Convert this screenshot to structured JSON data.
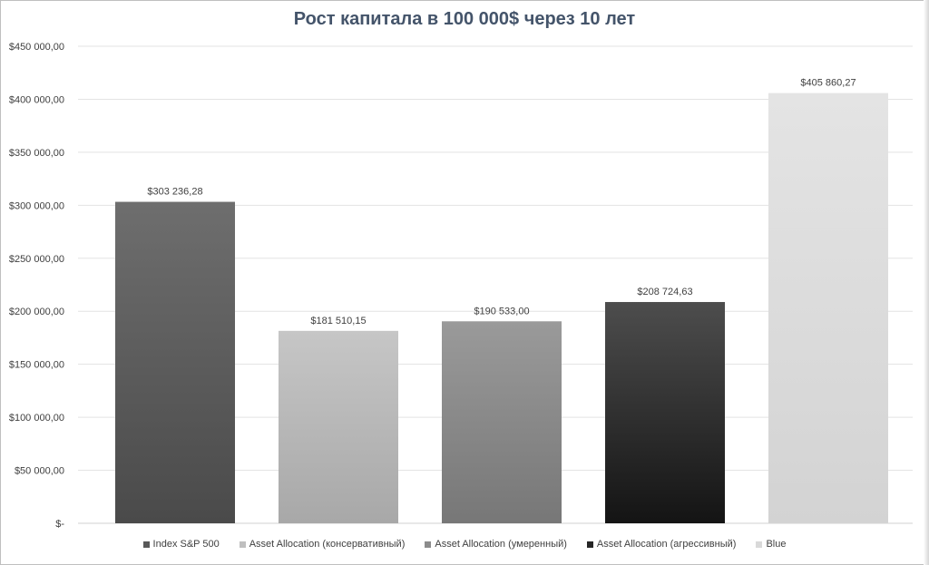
{
  "chart_data": {
    "type": "bar",
    "title": "Рост капитала в 100 000$ через 10 лет",
    "categories": [
      "Index S&P 500",
      "Asset Allocation (консервативный)",
      "Asset Allocation (умеренный)",
      "Asset Allocation (агрессивный)",
      "Blue"
    ],
    "values": [
      303236.28,
      181510.15,
      190533.0,
      208724.63,
      405860.27
    ],
    "data_labels": [
      "$303 236,28",
      "$181 510,15",
      "$190 533,00",
      "$208 724,63",
      "$405 860,27"
    ],
    "ylim": [
      0,
      450000
    ],
    "y_ticks": [
      {
        "value": 0,
        "label": "$-"
      },
      {
        "value": 50000,
        "label": "$50 000,00"
      },
      {
        "value": 100000,
        "label": "$100 000,00"
      },
      {
        "value": 150000,
        "label": "$150 000,00"
      },
      {
        "value": 200000,
        "label": "$200 000,00"
      },
      {
        "value": 250000,
        "label": "$250 000,00"
      },
      {
        "value": 300000,
        "label": "$300 000,00"
      },
      {
        "value": 350000,
        "label": "$350 000,00"
      },
      {
        "value": 400000,
        "label": "$400 000,00"
      },
      {
        "value": 450000,
        "label": "$450 000,00"
      }
    ],
    "colors": [
      {
        "top": "#6e6e6e",
        "bottom": "#4a4a4a"
      },
      {
        "top": "#c6c6c6",
        "bottom": "#a8a8a8"
      },
      {
        "top": "#9a9a9a",
        "bottom": "#777777"
      },
      {
        "top": "#4d4d4d",
        "bottom": "#141414"
      },
      {
        "top": "#e4e4e4",
        "bottom": "#d3d3d3"
      }
    ],
    "legend_colors": [
      "#595959",
      "#bfbfbf",
      "#8c8c8c",
      "#262626",
      "#d9d9d9"
    ],
    "grid": true,
    "legend_position": "bottom"
  }
}
